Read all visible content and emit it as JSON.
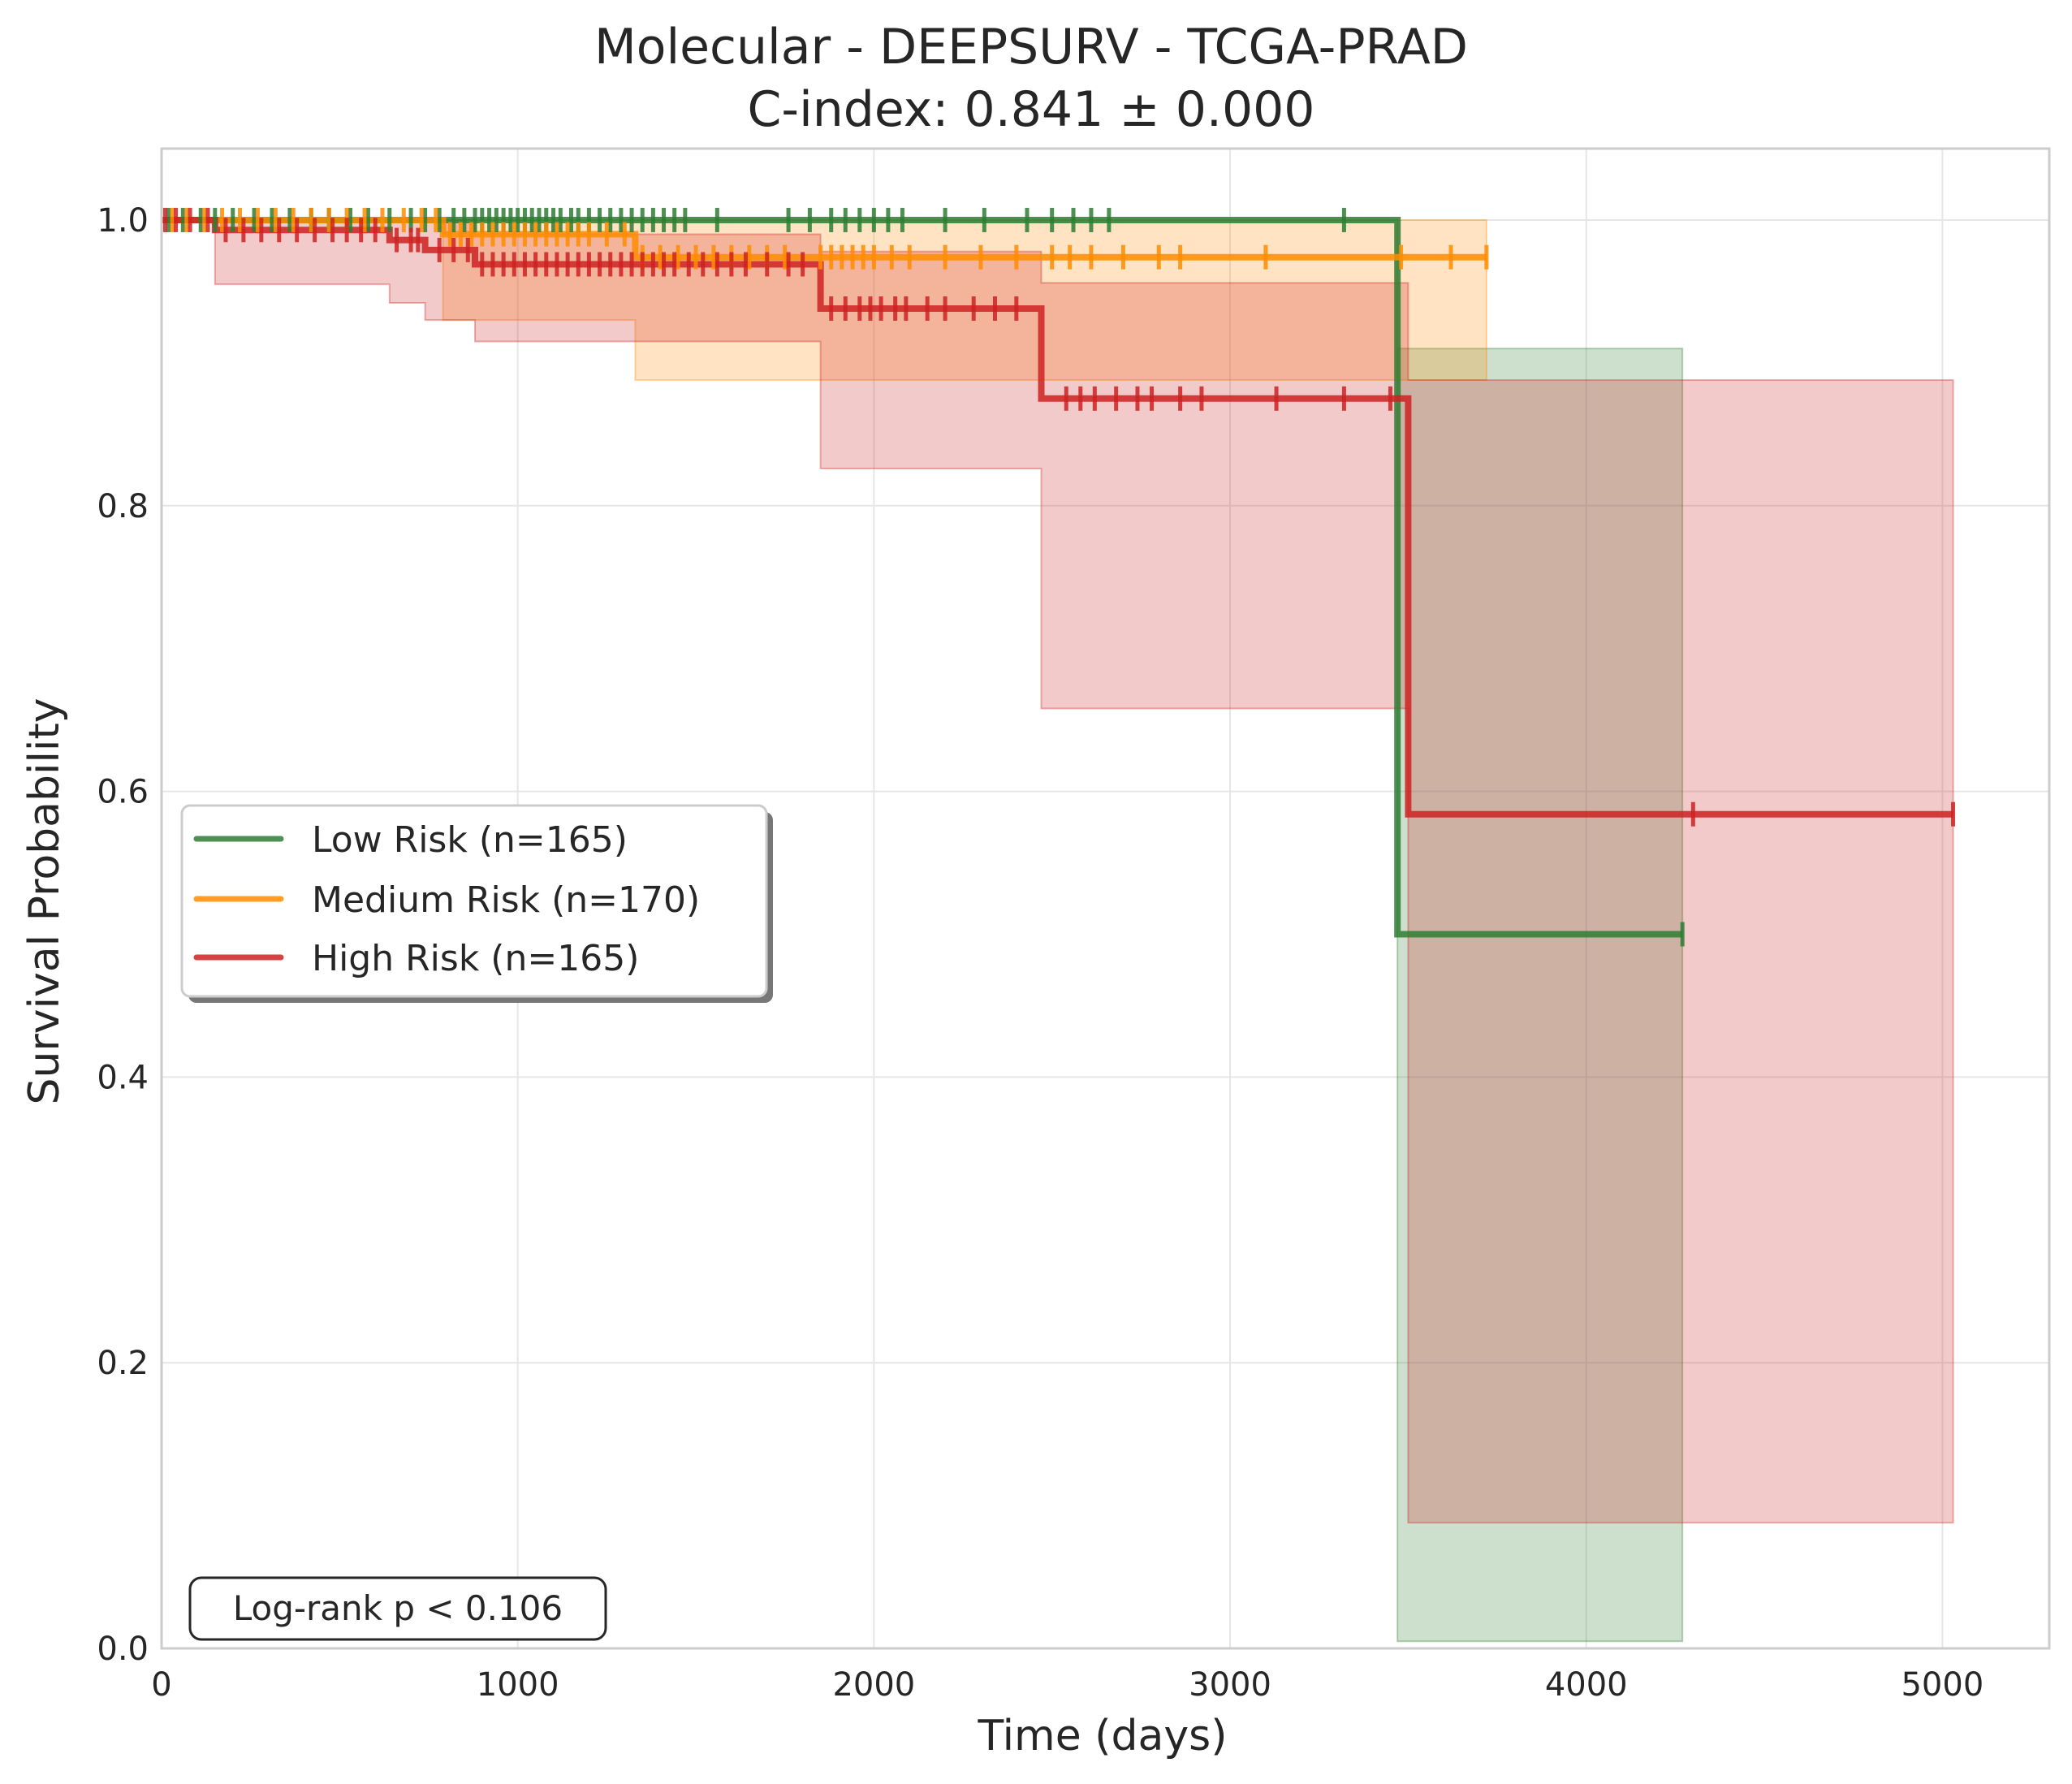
{
  "chart_data": {
    "type": "line",
    "subtype": "kaplan-meier",
    "title": "Molecular - DEEPSURV - TCGA-PRAD",
    "subtitle": "C-index: 0.841 ± 0.000",
    "xlabel": "Time (days)",
    "ylabel": "Survival Probability",
    "xlim": [
      0,
      5300
    ],
    "ylim": [
      0,
      1.05
    ],
    "xticks": [
      0,
      1000,
      2000,
      3000,
      4000,
      5000
    ],
    "xtick_labels": [
      "0",
      "1000",
      "2000",
      "3000",
      "4000",
      "5000"
    ],
    "yticks": [
      0.0,
      0.2,
      0.4,
      0.6,
      0.8,
      1.0
    ],
    "ytick_labels": [
      "0.0",
      "0.2",
      "0.4",
      "0.6",
      "0.8",
      "1.0"
    ],
    "grid": true,
    "legend_position": "center-left",
    "annotation": "Log-rank p < 0.106",
    "series": [
      {
        "name": "Low Risk (n=165)",
        "color": "#2e7d32",
        "steps": [
          [
            0,
            1.0
          ],
          [
            3470,
            0.5
          ],
          [
            4270,
            0.5
          ]
        ],
        "ci_lower": [
          [
            0,
            1.0
          ],
          [
            3470,
            0.005
          ],
          [
            4270,
            0.005
          ]
        ],
        "ci_upper": [
          [
            0,
            1.0
          ],
          [
            3470,
            0.91
          ],
          [
            4270,
            0.91
          ]
        ],
        "censor_times": [
          20,
          60,
          110,
          150,
          200,
          260,
          310,
          360,
          420,
          470,
          530,
          580,
          640,
          700,
          740,
          780,
          820,
          850,
          880,
          900,
          920,
          940,
          960,
          980,
          1000,
          1020,
          1040,
          1060,
          1080,
          1100,
          1120,
          1150,
          1170,
          1200,
          1230,
          1260,
          1290,
          1320,
          1350,
          1380,
          1410,
          1440,
          1470,
          1560,
          1760,
          1820,
          1880,
          1920,
          1960,
          2000,
          2040,
          2080,
          2200,
          2310,
          2430,
          2500,
          2560,
          2610,
          2660,
          3320,
          4270
        ]
      },
      {
        "name": "Medium Risk (n=170)",
        "color": "#ff8c00",
        "steps": [
          [
            0,
            1.0
          ],
          [
            790,
            0.99
          ],
          [
            1330,
            0.974
          ],
          [
            3720,
            0.974
          ]
        ],
        "ci_lower": [
          [
            0,
            1.0
          ],
          [
            790,
            0.93
          ],
          [
            1330,
            0.888
          ],
          [
            3720,
            0.888
          ]
        ],
        "ci_upper": [
          [
            0,
            1.0
          ],
          [
            3720,
            0.995
          ]
        ],
        "censor_times": [
          30,
          70,
          120,
          170,
          220,
          270,
          320,
          370,
          420,
          470,
          520,
          570,
          620,
          680,
          730,
          770,
          810,
          840,
          870,
          900,
          930,
          960,
          990,
          1020,
          1050,
          1080,
          1110,
          1140,
          1170,
          1200,
          1250,
          1300,
          1350,
          1400,
          1450,
          1500,
          1550,
          1600,
          1650,
          1700,
          1750,
          1850,
          1880,
          1910,
          1940,
          1970,
          2000,
          2050,
          2100,
          2200,
          2300,
          2400,
          2500,
          2550,
          2610,
          2700,
          2800,
          2860,
          3100,
          3480,
          3620,
          3720
        ]
      },
      {
        "name": "High Risk (n=165)",
        "color": "#cc2222",
        "steps": [
          [
            0,
            1.0
          ],
          [
            150,
            0.993
          ],
          [
            640,
            0.986
          ],
          [
            740,
            0.979
          ],
          [
            880,
            0.969
          ],
          [
            1850,
            0.938
          ],
          [
            2470,
            0.875
          ],
          [
            3500,
            0.584
          ],
          [
            5030,
            0.584
          ]
        ],
        "ci_lower": [
          [
            0,
            1.0
          ],
          [
            150,
            0.955
          ],
          [
            640,
            0.942
          ],
          [
            740,
            0.93
          ],
          [
            880,
            0.915
          ],
          [
            1850,
            0.826
          ],
          [
            2470,
            0.658
          ],
          [
            3500,
            0.088
          ],
          [
            5030,
            0.088
          ]
        ],
        "ci_upper": [
          [
            0,
            1.0
          ],
          [
            880,
            0.99
          ],
          [
            1850,
            0.978
          ],
          [
            2470,
            0.956
          ],
          [
            3500,
            0.888
          ],
          [
            5030,
            0.888
          ]
        ],
        "censor_times": [
          10,
          40,
          80,
          130,
          180,
          230,
          280,
          330,
          380,
          430,
          480,
          520,
          560,
          600,
          660,
          700,
          720,
          780,
          820,
          860,
          900,
          930,
          960,
          990,
          1020,
          1050,
          1080,
          1110,
          1140,
          1170,
          1200,
          1230,
          1260,
          1290,
          1320,
          1350,
          1380,
          1410,
          1440,
          1480,
          1520,
          1560,
          1600,
          1640,
          1700,
          1760,
          1800,
          1880,
          1920,
          1960,
          1990,
          2020,
          2060,
          2090,
          2150,
          2200,
          2280,
          2340,
          2400,
          2540,
          2580,
          2620,
          2680,
          2740,
          2780,
          2860,
          2920,
          3130,
          3320,
          3450,
          4300,
          5030
        ]
      }
    ]
  }
}
